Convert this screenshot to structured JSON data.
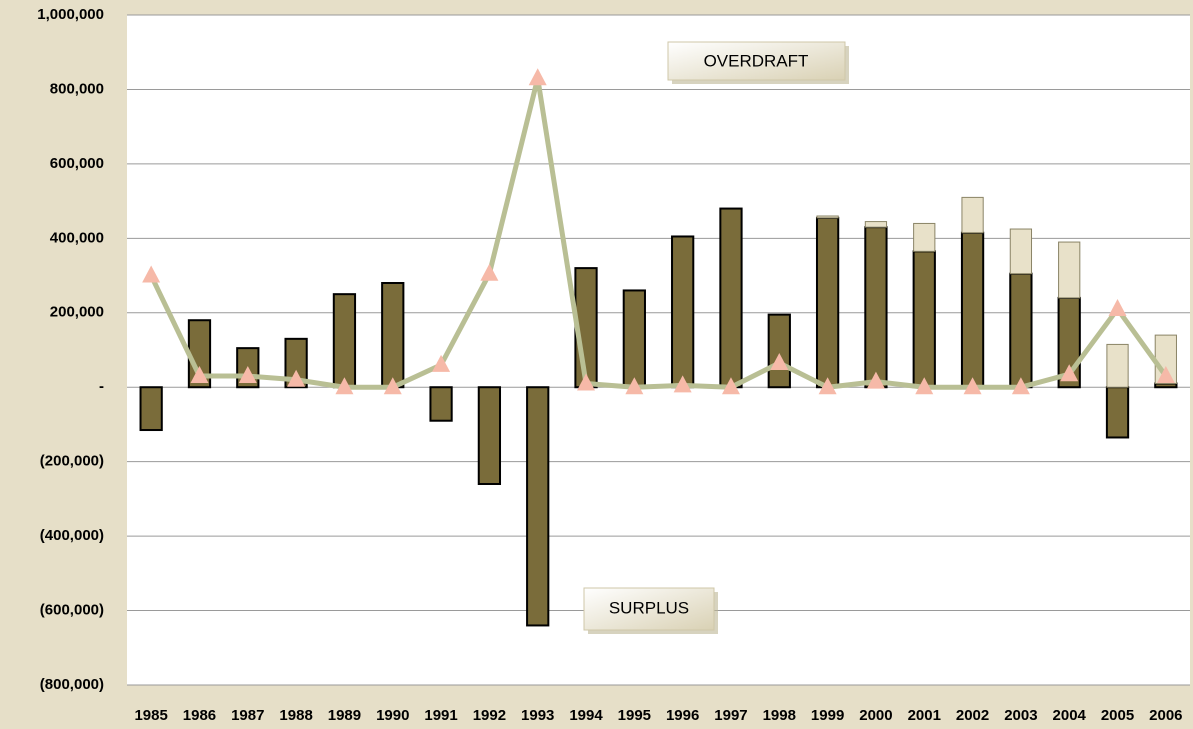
{
  "chart_data": {
    "type": "bar",
    "categories": [
      "1985",
      "1986",
      "1987",
      "1988",
      "1989",
      "1990",
      "1991",
      "1992",
      "1993",
      "1994",
      "1995",
      "1996",
      "1997",
      "1998",
      "1999",
      "2000",
      "2001",
      "2002",
      "2003",
      "2004",
      "2005",
      "2006"
    ],
    "series": [
      {
        "type": "bar",
        "color": "#7a6c3a",
        "values": [
          -115000,
          180000,
          105000,
          130000,
          250000,
          280000,
          -90000,
          -260000,
          -640000,
          320000,
          260000,
          405000,
          480000,
          195000,
          455000,
          430000,
          365000,
          415000,
          305000,
          240000,
          -135000,
          10000
        ]
      },
      {
        "type": "bar",
        "color": "#e8e1c9",
        "values": [
          0,
          0,
          0,
          0,
          0,
          0,
          0,
          0,
          0,
          0,
          0,
          0,
          0,
          0,
          5000,
          15000,
          75000,
          95000,
          120000,
          150000,
          115000,
          130000
        ]
      },
      {
        "type": "line",
        "color": "#b9bf94",
        "marker_color": "#f6b9a8",
        "values": [
          300000,
          30000,
          30000,
          20000,
          0,
          0,
          60000,
          305000,
          830000,
          10000,
          0,
          5000,
          0,
          65000,
          0,
          15000,
          0,
          0,
          0,
          35000,
          210000,
          30000
        ]
      }
    ],
    "stacked": true,
    "ylim": [
      -800000,
      1000000
    ],
    "yticks": [
      {
        "value": -800000,
        "label": "(800,000)"
      },
      {
        "value": -600000,
        "label": "(600,000)"
      },
      {
        "value": -400000,
        "label": "(400,000)"
      },
      {
        "value": -200000,
        "label": "(200,000)"
      },
      {
        "value": 0,
        "label": "-"
      },
      {
        "value": 200000,
        "label": "200,000"
      },
      {
        "value": 400000,
        "label": "400,000"
      },
      {
        "value": 600000,
        "label": "600,000"
      },
      {
        "value": 800000,
        "label": "800,000"
      },
      {
        "value": 1000000,
        "label": "1,000,000"
      }
    ],
    "grid": true,
    "annotations": [
      "OVERDRAFT",
      "SURPLUS"
    ]
  }
}
